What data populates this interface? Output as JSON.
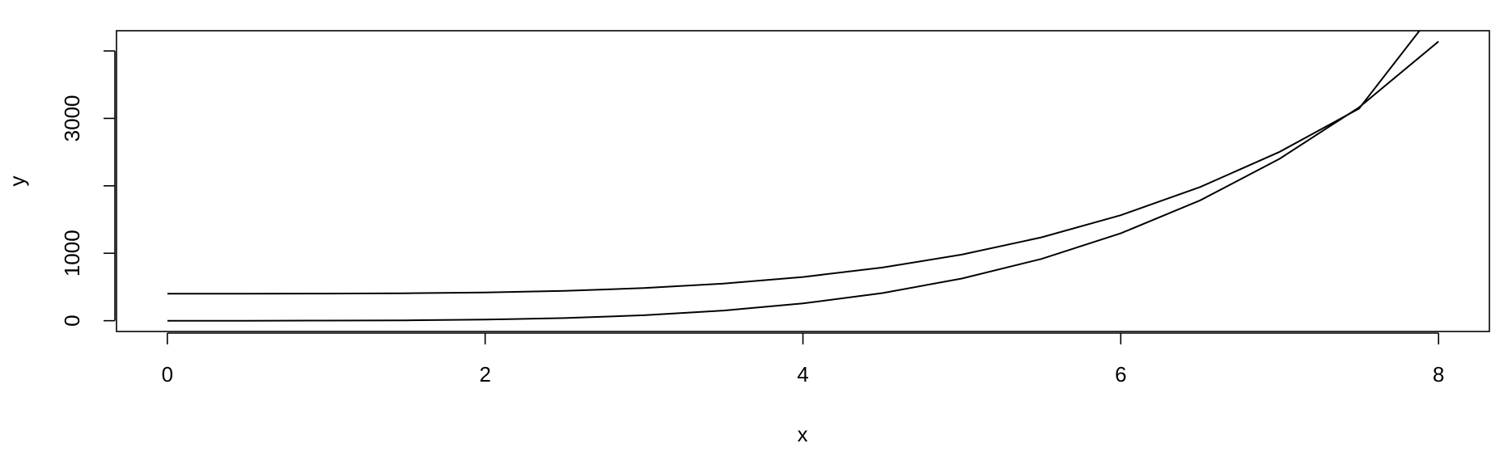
{
  "chart_data": {
    "type": "line",
    "title": "",
    "xlabel": "x",
    "ylabel": "y",
    "xlim": [
      -0.32,
      8.32
    ],
    "ylim": [
      -160,
      4300
    ],
    "x_ticks": [
      0,
      2,
      4,
      6,
      8
    ],
    "y_ticks": [
      0,
      1000,
      2000,
      3000,
      4000
    ],
    "y_tick_labels": [
      "0",
      "1000",
      "",
      "3000",
      ""
    ],
    "grid": false,
    "legend": "none",
    "series": [
      {
        "x": [
          0,
          0.5,
          1,
          1.5,
          2,
          2.5,
          3,
          3.5,
          4,
          4.5,
          5,
          5.5,
          6,
          6.5,
          7,
          7.5,
          7.88
        ],
        "y": [
          400,
          400,
          402,
          407,
          419,
          443,
          484,
          550,
          648,
          788,
          980,
          1235,
          1564,
          1983,
          2504,
          3145,
          4300
        ]
      },
      {
        "x": [
          0,
          0.5,
          1,
          1.5,
          2,
          2.5,
          3,
          3.5,
          4,
          4.5,
          5,
          5.5,
          6,
          6.5,
          7,
          7.5,
          8
        ],
        "y": [
          0,
          0,
          2,
          6,
          16,
          39,
          81,
          150,
          256,
          410,
          625,
          915,
          1296,
          1785,
          2401,
          3164,
          4140
        ]
      }
    ],
    "colors": {
      "line": "#000000",
      "axis": "#000000",
      "background": "#ffffff"
    }
  }
}
